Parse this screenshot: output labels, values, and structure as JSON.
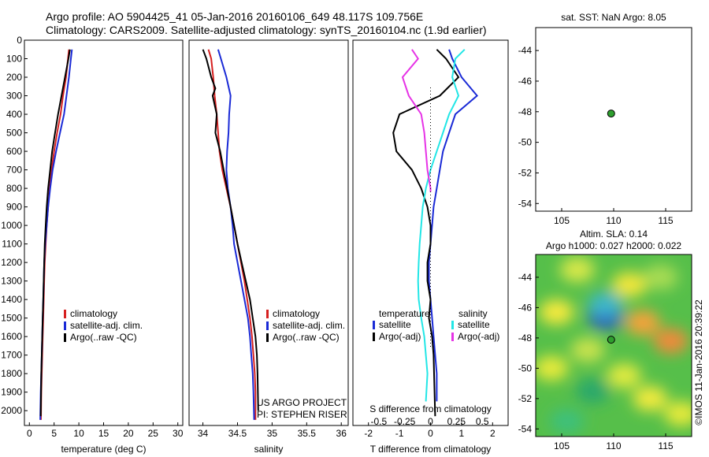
{
  "header": {
    "line1": "Argo profile: AO 5904425_41 05-Jan-2016 20160106_649 48.117S 109.756E",
    "line2": "Climatology: CARS2009. Satellite-adjusted climatology: synTS_20160104.nc (1.9d earlier)"
  },
  "colors": {
    "climatology": "#d62020",
    "satellite": "#1a2ad6",
    "argo": "#000000",
    "salinity_satellite": "#22e6e6",
    "salinity_argo": "#e633e6",
    "float_marker": "#2e9e2e"
  },
  "chart_data": [
    {
      "type": "line",
      "xlabel": "temperature (deg C)",
      "ylabel": "",
      "xlim": [
        -1,
        31
      ],
      "ylim": [
        2080,
        0
      ],
      "xticks": [
        "0",
        "5",
        "10",
        "15",
        "20",
        "25",
        "30"
      ],
      "yticks": [
        "0",
        "100",
        "200",
        "300",
        "400",
        "500",
        "600",
        "700",
        "800",
        "900",
        "1000",
        "1100",
        "1200",
        "1300",
        "1400",
        "1500",
        "1600",
        "1700",
        "1800",
        "1900",
        "2000"
      ],
      "legend": [
        "climatology",
        "satellite-adj. clim.",
        "Argo(..raw -QC)"
      ],
      "legend_position": "lower-center",
      "series": [
        {
          "name": "climatology",
          "color": "#d62020",
          "x": [
            8.0,
            7.8,
            7.4,
            6.8,
            6.3,
            5.6,
            5.0,
            4.5,
            4.1,
            3.8,
            3.5,
            3.3,
            3.1,
            3.0,
            2.9,
            2.8,
            2.7,
            2.6,
            2.5,
            2.4,
            2.35
          ],
          "y": [
            50,
            100,
            200,
            300,
            400,
            500,
            600,
            700,
            800,
            900,
            1000,
            1100,
            1200,
            1300,
            1400,
            1500,
            1600,
            1700,
            1800,
            1900,
            2050
          ]
        },
        {
          "name": "satellite-adj. clim.",
          "color": "#1a2ad6",
          "x": [
            8.6,
            8.4,
            8.0,
            7.5,
            7.0,
            6.2,
            5.4,
            4.7,
            4.2,
            3.8,
            3.5,
            3.2,
            3.0,
            2.9,
            2.8,
            2.7,
            2.6,
            2.5,
            2.4,
            2.3,
            2.2
          ],
          "y": [
            50,
            100,
            200,
            300,
            400,
            500,
            600,
            700,
            800,
            900,
            1000,
            1100,
            1200,
            1300,
            1400,
            1500,
            1600,
            1700,
            1800,
            1900,
            2050
          ]
        },
        {
          "name": "Argo(..raw -QC)",
          "color": "#000000",
          "x": [
            8.2,
            7.9,
            7.2,
            6.5,
            5.8,
            5.2,
            4.6,
            4.2,
            3.8,
            3.5,
            3.3,
            3.1,
            3.0,
            2.9,
            2.8,
            2.7,
            2.6,
            2.5,
            2.4,
            2.3
          ],
          "y": [
            50,
            100,
            200,
            300,
            400,
            500,
            600,
            700,
            800,
            900,
            1000,
            1100,
            1200,
            1300,
            1400,
            1500,
            1600,
            1700,
            1800,
            2030
          ]
        }
      ]
    },
    {
      "type": "line",
      "xlabel": "salinity",
      "ylabel": "",
      "xlim": [
        33.8,
        36.1
      ],
      "ylim": [
        2080,
        0
      ],
      "xticks": [
        "34",
        "34.5",
        "35",
        "35.5",
        "36"
      ],
      "legend": [
        "climatology",
        "satellite-adj. clim.",
        "Argo(..raw -QC)"
      ],
      "legend_position": "lower-right",
      "annotations": [
        "US ARGO PROJECT",
        "PI: STEPHEN RISER"
      ],
      "series": [
        {
          "name": "climatology",
          "color": "#d62020",
          "x": [
            34.08,
            34.12,
            34.15,
            34.17,
            34.2,
            34.22,
            34.24,
            34.28,
            34.34,
            34.4,
            34.45,
            34.5,
            34.55,
            34.6,
            34.64,
            34.68,
            34.71,
            34.73,
            34.75,
            34.76,
            34.76
          ],
          "y": [
            50,
            100,
            200,
            300,
            400,
            500,
            600,
            700,
            800,
            900,
            1000,
            1100,
            1200,
            1300,
            1400,
            1500,
            1600,
            1700,
            1800,
            1900,
            2050
          ]
        },
        {
          "name": "satellite-adj. clim.",
          "color": "#1a2ad6",
          "x": [
            34.22,
            34.26,
            34.34,
            34.4,
            34.38,
            34.37,
            34.35,
            34.34,
            34.36,
            34.4,
            34.43,
            34.45,
            34.5,
            34.55,
            34.6,
            34.65,
            34.68,
            34.7,
            34.72,
            34.73,
            34.74
          ],
          "y": [
            50,
            100,
            200,
            300,
            400,
            500,
            600,
            700,
            800,
            900,
            1000,
            1100,
            1200,
            1300,
            1400,
            1500,
            1600,
            1700,
            1800,
            1900,
            2050
          ]
        },
        {
          "name": "Argo(..raw -QC)",
          "color": "#000000",
          "x": [
            34.0,
            34.05,
            34.12,
            34.18,
            34.14,
            34.2,
            34.18,
            34.25,
            34.3,
            34.35,
            34.4,
            34.45,
            34.5,
            34.56,
            34.62,
            34.68,
            34.72,
            34.76,
            34.78,
            34.79,
            34.8
          ],
          "y": [
            50,
            100,
            200,
            260,
            300,
            400,
            500,
            600,
            700,
            800,
            900,
            1000,
            1100,
            1200,
            1300,
            1400,
            1500,
            1600,
            1700,
            1800,
            2000
          ]
        }
      ]
    },
    {
      "type": "line",
      "xlabel": "T difference from climatology",
      "x2label": "S difference from climatology",
      "ylabel": "",
      "xlim": [
        -2.5,
        2.5
      ],
      "ylim": [
        2080,
        0
      ],
      "xticks": [
        "-2",
        "-1",
        "0",
        "1",
        "2"
      ],
      "x2ticks": [
        "-0.5",
        "-0.25",
        "0",
        "0.25",
        "0.5"
      ],
      "legend": [
        "temperature",
        "satellite",
        "Argo(-adj)",
        "salinity",
        "satellite",
        "Argo(-adj)"
      ],
      "legend_position": "lower-center",
      "series": [
        {
          "name": "satellite",
          "color": "#1a2ad6",
          "x": [
            0.6,
            0.7,
            1.0,
            1.5,
            0.8,
            0.6,
            0.4,
            0.3,
            0.2,
            0.1,
            0.05,
            0.0,
            -0.05,
            -0.05,
            0.0,
            0.05,
            0.1,
            0.15,
            0.2,
            0.2
          ],
          "y": [
            50,
            100,
            200,
            300,
            400,
            500,
            600,
            700,
            800,
            900,
            1000,
            1100,
            1200,
            1300,
            1400,
            1500,
            1600,
            1700,
            1800,
            1950
          ]
        },
        {
          "name": "Argo(-adj)",
          "color": "#000000",
          "x": [
            0.2,
            0.5,
            0.9,
            0.3,
            -1.0,
            -1.2,
            -1.1,
            -0.6,
            -0.3,
            -0.1,
            0.0,
            0.0,
            -0.1,
            -0.1,
            0.0,
            -0.05,
            0.05,
            0.1,
            0.15
          ],
          "y": [
            50,
            100,
            200,
            300,
            400,
            500,
            600,
            700,
            800,
            900,
            1000,
            1100,
            1200,
            1300,
            1400,
            1500,
            1600,
            1700,
            2030
          ]
        },
        {
          "name": "satellite",
          "color": "#22e6e6",
          "x": [
            1.1,
            0.8,
            0.7,
            0.9,
            0.6,
            0.4,
            0.2,
            0.0,
            -0.15,
            -0.25,
            -0.3,
            -0.35,
            -0.38,
            -0.4,
            -0.38,
            -0.3,
            -0.2,
            -0.15,
            -0.1,
            -0.15
          ],
          "y": [
            50,
            100,
            200,
            300,
            400,
            500,
            600,
            700,
            800,
            900,
            1000,
            1100,
            1200,
            1300,
            1400,
            1500,
            1600,
            1700,
            1800,
            1950
          ]
        },
        {
          "name": "Argo(-adj)",
          "color": "#e633e6",
          "x": [
            -0.6,
            -0.4,
            -0.9,
            -0.7,
            -0.3,
            -0.2,
            -0.15,
            -0.1,
            -0.05,
            0.0,
            0.0
          ],
          "y": [
            50,
            100,
            200,
            300,
            400,
            500,
            600,
            700,
            750,
            800,
            820
          ]
        }
      ]
    },
    {
      "type": "scatter",
      "title": "sat. SST: NaN Argo: 8.05",
      "xlim": [
        102.5,
        117.5
      ],
      "ylim": [
        -54.5,
        -42.5
      ],
      "xticks": [
        "105",
        "110",
        "115"
      ],
      "yticks": [
        "-44",
        "-46",
        "-48",
        "-50",
        "-52",
        "-54"
      ],
      "points": [
        {
          "x": 109.756,
          "y": -48.117
        }
      ]
    },
    {
      "type": "heatmap",
      "title": "Altim. SLA: 0.14",
      "subtitle": "Argo h1000: 0.027 h2000: 0.022",
      "watermark": "©IMOS 11-Jan-2016 20:39:22",
      "xlim": [
        102.5,
        117.5
      ],
      "ylim": [
        -54.5,
        -42.5
      ],
      "xticks": [
        "105",
        "110",
        "115"
      ],
      "yticks": [
        "-44",
        "-46",
        "-48",
        "-50",
        "-52",
        "-54"
      ],
      "points": [
        {
          "x": 109.756,
          "y": -48.117
        }
      ],
      "blobs": [
        {
          "x": 104.5,
          "y": -46.3,
          "color": "#f7ea3c"
        },
        {
          "x": 106.5,
          "y": -43.5,
          "color": "#d8e84a"
        },
        {
          "x": 104.0,
          "y": -50.0,
          "color": "#e6ea3a"
        },
        {
          "x": 107.5,
          "y": -48.8,
          "color": "#c7e24e"
        },
        {
          "x": 108.0,
          "y": -51.5,
          "color": "#2aa86c"
        },
        {
          "x": 109.2,
          "y": -46.6,
          "color": "#2a52c8"
        },
        {
          "x": 109.2,
          "y": -45.8,
          "color": "#3cb6c8"
        },
        {
          "x": 111.5,
          "y": -44.5,
          "color": "#f2e63a"
        },
        {
          "x": 112.8,
          "y": -47.0,
          "color": "#f5a23a"
        },
        {
          "x": 113.5,
          "y": -52.0,
          "color": "#f2ea3c"
        },
        {
          "x": 115.5,
          "y": -48.2,
          "color": "#f08a3a"
        },
        {
          "x": 116.5,
          "y": -53.0,
          "color": "#e6ea3a"
        },
        {
          "x": 105.5,
          "y": -53.5,
          "color": "#3cc07a"
        },
        {
          "x": 111.0,
          "y": -50.5,
          "color": "#e0ea40"
        },
        {
          "x": 114.5,
          "y": -44.0,
          "color": "#a8dc52"
        }
      ]
    }
  ]
}
